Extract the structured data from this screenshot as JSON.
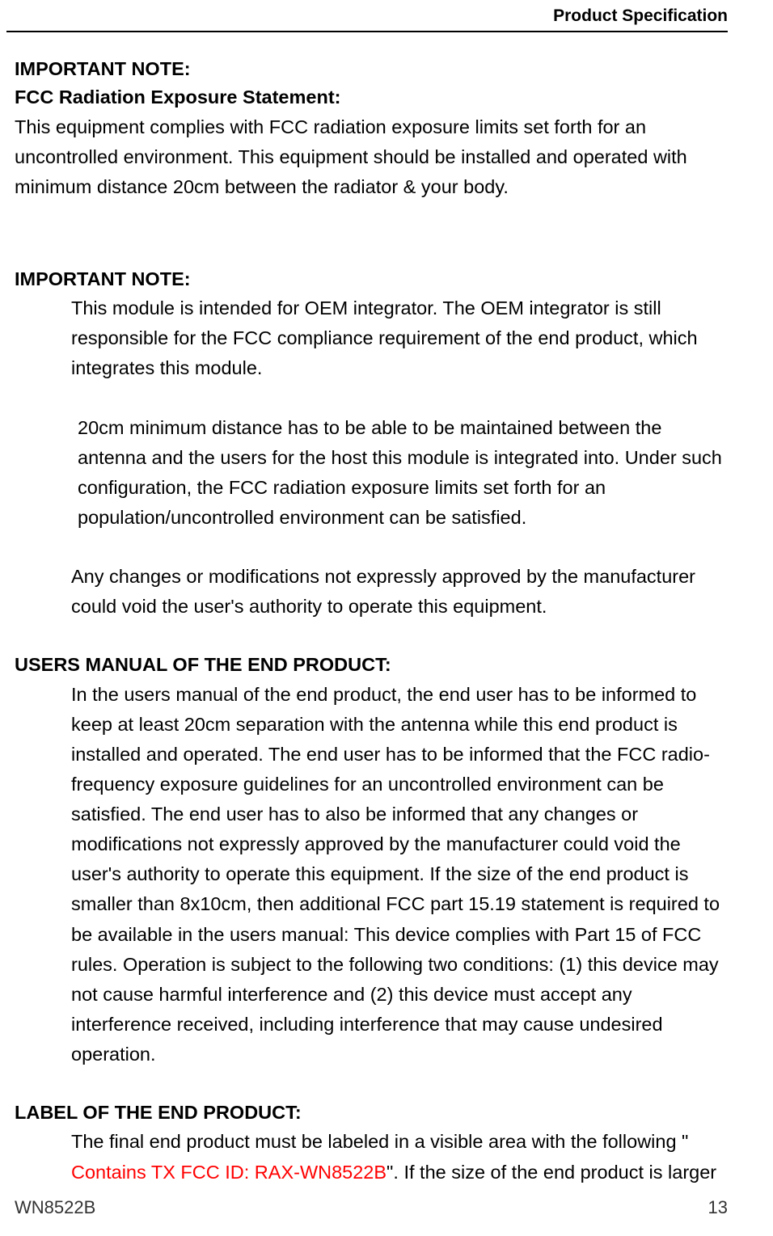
{
  "header": {
    "title": "Product Specification"
  },
  "section1": {
    "heading1": "IMPORTANT NOTE:",
    "heading2": "FCC Radiation Exposure Statement:",
    "para": "This equipment complies with FCC radiation exposure limits set forth for an uncontrolled environment. This equipment should be installed and operated with minimum distance 20cm between the radiator & your body."
  },
  "section2": {
    "heading": "IMPORTANT NOTE:",
    "para1": "This module is intended for OEM integrator. The OEM integrator is still responsible for the FCC compliance requirement of the end product, which integrates this module.",
    "para2": "20cm minimum distance has to be able to be maintained between the antenna and the users for the host this module is integrated into. Under such configuration, the FCC radiation exposure limits set forth for an population/uncontrolled environment can be satisfied.",
    "para3": "Any changes or modifications not expressly approved by the manufacturer could void the user's authority to operate this equipment."
  },
  "section3": {
    "heading": "USERS MANUAL OF THE END PRODUCT:",
    "para": "In the users manual of the end product, the end user has to be informed to keep at least 20cm separation with the antenna while this end product is installed and operated. The end user has to be informed that the FCC radio-frequency exposure guidelines for an uncontrolled environment can be satisfied. The end user has to also be informed that any changes or modifications not expressly approved by the manufacturer could void the user's authority to operate this equipment. If the size of the end product is smaller than 8x10cm, then additional FCC part 15.19 statement is required to be available in the users manual: This device complies with Part 15 of FCC rules. Operation is subject to the following two conditions: (1) this device may not cause harmful interference and (2) this device must accept any interference received, including interference that may cause undesired operation."
  },
  "section4": {
    "heading": "LABEL OF THE END PRODUCT:",
    "para_pre": "The final end product must be labeled in a visible area with the following \" ",
    "para_red": "Contains TX FCC ID: RAX-WN8522B",
    "para_post": "\". If the size of the end product is larger"
  },
  "footer": {
    "model": "WN8522B",
    "page": "13"
  },
  "colors": {
    "text": "#000000",
    "red": "#ff0000",
    "background": "#ffffff"
  },
  "typography": {
    "body_fontsize": 23.5,
    "header_fontsize": 21,
    "footer_fontsize": 22,
    "line_height": 1.58,
    "font_family": "Arial"
  }
}
